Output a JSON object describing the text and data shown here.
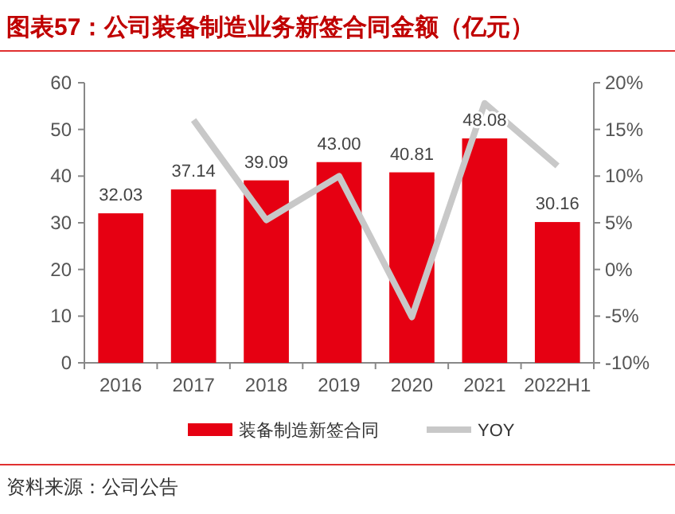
{
  "chart_data": {
    "type": "bar",
    "title": "图表57：公司装备制造业务新签合同金额（亿元）",
    "annotations": [
      "资料来源：公司公告"
    ],
    "categories": [
      "2016",
      "2017",
      "2018",
      "2019",
      "2020",
      "2021",
      "2022H1"
    ],
    "series": [
      {
        "name": "装备制造新签合同",
        "color": "#e60012",
        "values": [
          32.03,
          37.14,
          39.09,
          43.0,
          40.81,
          48.08,
          30.16
        ],
        "value_labels": [
          "32.03",
          "37.14",
          "39.09",
          "43.00",
          "40.81",
          "48.08",
          "30.16"
        ]
      },
      {
        "name": "YOY",
        "type": "line",
        "axis": "y2",
        "color": "#c8c8c8",
        "values": [
          null,
          16.0,
          5.3,
          10.0,
          -5.1,
          17.8,
          11.1
        ]
      }
    ],
    "ylim": [
      0,
      60
    ],
    "yticks": [
      0,
      10,
      20,
      30,
      40,
      50,
      60
    ],
    "y2lim": [
      -10,
      20
    ],
    "y2ticks": [
      {
        "value": -10,
        "label": "-10%"
      },
      {
        "value": -5,
        "label": "-5%"
      },
      {
        "value": 0,
        "label": "0%"
      },
      {
        "value": 5,
        "label": "5%"
      },
      {
        "value": 10,
        "label": "10%"
      },
      {
        "value": 15,
        "label": "15%"
      },
      {
        "value": 20,
        "label": "20%"
      }
    ],
    "legend": "bottom",
    "grid": false
  }
}
